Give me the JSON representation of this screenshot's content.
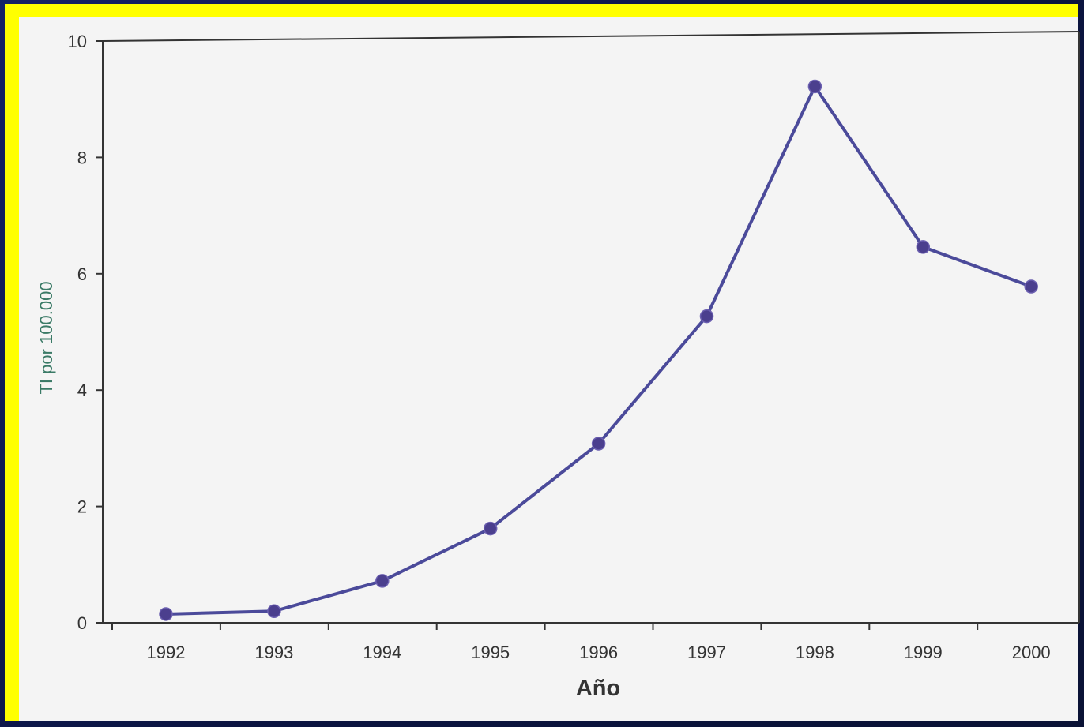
{
  "chart_data": {
    "type": "line",
    "title": "",
    "xlabel": "Año",
    "ylabel": "TI por 100.000",
    "categories": [
      "1992",
      "1993",
      "1994",
      "1995",
      "1996",
      "1997",
      "1998",
      "1999",
      "2000"
    ],
    "series": [
      {
        "values": [
          0.15,
          0.2,
          0.72,
          1.62,
          3.08,
          5.27,
          9.22,
          6.46,
          5.78
        ]
      }
    ],
    "ylim": [
      0,
      10
    ],
    "yticks": [
      0,
      2,
      4,
      6,
      8,
      10
    ],
    "grid": false,
    "legend": "none",
    "colors": {
      "line": "#4b4a9a",
      "marker": "#4b3f8e",
      "axis": "#333333",
      "text": "#333333",
      "ylabel": "#3a7a66",
      "frame": "#ffff00",
      "background": "#0f1a4a",
      "paper": "#f4f4f4"
    }
  }
}
